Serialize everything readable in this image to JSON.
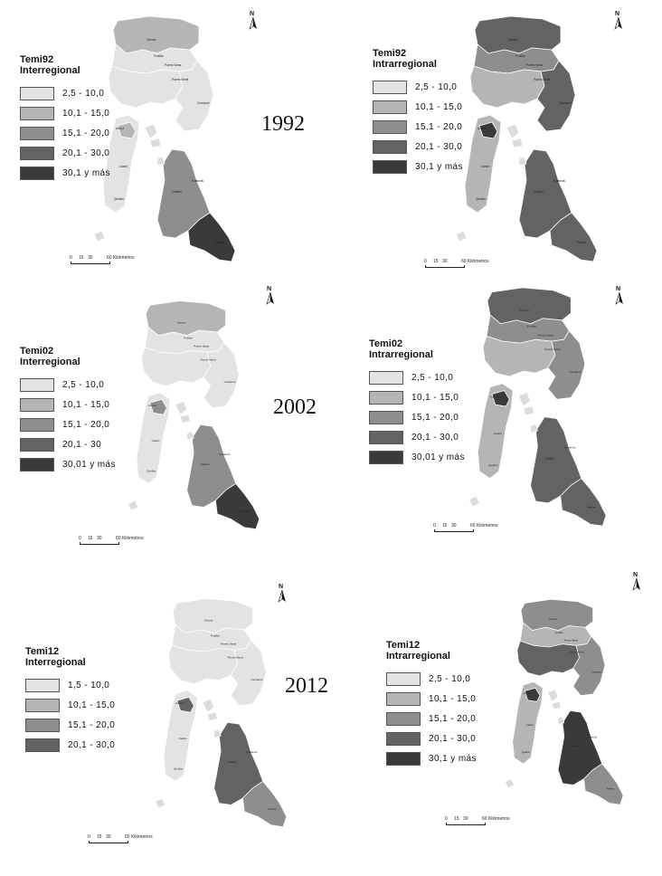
{
  "colors": {
    "class1": "#e3e3e3",
    "class2": "#b5b5b5",
    "class3": "#8e8e8e",
    "class4": "#636363",
    "class5": "#3a3a3a",
    "outline": "#ffffff",
    "island": "#dcdcdc"
  },
  "north_arrow": {
    "letter": "N",
    "icon": "north-arrow-icon"
  },
  "scalebar": {
    "ticks": [
      "0",
      "15",
      "30",
      "60 Kilómetros"
    ]
  },
  "panels": [
    {
      "id": "1992-inter",
      "title_line1": "Temi92",
      "title_line2": "Interregional",
      "year": "1992",
      "legend": [
        "2,5 - 10,0",
        "10,1 - 15,0",
        "15,1 - 20,0",
        "20,1 - 30,0",
        "30,1 y más"
      ],
      "classes": {
        "north": 2,
        "center": 1,
        "east": 1,
        "chiloe": 1,
        "south": 3,
        "palena": 5,
        "highlight": 2
      }
    },
    {
      "id": "1992-intra",
      "title_line1": "Temi92",
      "title_line2": "Intrarregional",
      "legend": [
        "2,5 - 10,0",
        "10,1 - 15,0",
        "15,1 - 20,0",
        "20,1 - 30,0",
        "30,1 y más"
      ],
      "classes": {
        "north": 4,
        "center": 2,
        "east": 4,
        "chiloe": 2,
        "south": 4,
        "palena": 4,
        "highlight": 5
      }
    },
    {
      "id": "2002-inter",
      "title_line1": "Temi02",
      "title_line2": "Interregional",
      "year": "2002",
      "legend": [
        "2,5 - 10,0",
        "10,1 - 15,0",
        "15,1 - 20,0",
        "20,1 - 30",
        "30,01 y más"
      ],
      "classes": {
        "north": 2,
        "center": 1,
        "east": 1,
        "chiloe": 1,
        "south": 3,
        "palena": 5,
        "highlight": 3
      }
    },
    {
      "id": "2002-intra",
      "title_line1": "Temi02",
      "title_line2": "Intrarregional",
      "legend": [
        "2,5 - 10,0",
        "10,1 - 15,0",
        "15,1 - 20,0",
        "20,1 - 30,0",
        "30,01 y más"
      ],
      "classes": {
        "north": 4,
        "center": 2,
        "east": 3,
        "chiloe": 2,
        "south": 4,
        "palena": 4,
        "highlight": 5
      }
    },
    {
      "id": "2012-inter",
      "title_line1": "Temi12",
      "title_line2": "Interregional",
      "year": "2012",
      "legend": [
        "1,5 - 10,0",
        "10,1 - 15,0",
        "15,1 - 20,0",
        "20,1 - 30,0"
      ],
      "classes": {
        "north": 1,
        "center": 1,
        "east": 1,
        "chiloe": 1,
        "south": 4,
        "palena": 3,
        "highlight": 4
      }
    },
    {
      "id": "2012-intra",
      "title_line1": "Temi12",
      "title_line2": "Intrarregional",
      "legend": [
        "2,5 - 10,0",
        "10,1 - 15,0",
        "15,1 - 20,0",
        "20,1 - 30,0",
        "30,1 y más"
      ],
      "classes": {
        "north": 3,
        "center": 4,
        "east": 3,
        "chiloe": 2,
        "south": 5,
        "palena": 3,
        "highlight": 5
      }
    }
  ]
}
